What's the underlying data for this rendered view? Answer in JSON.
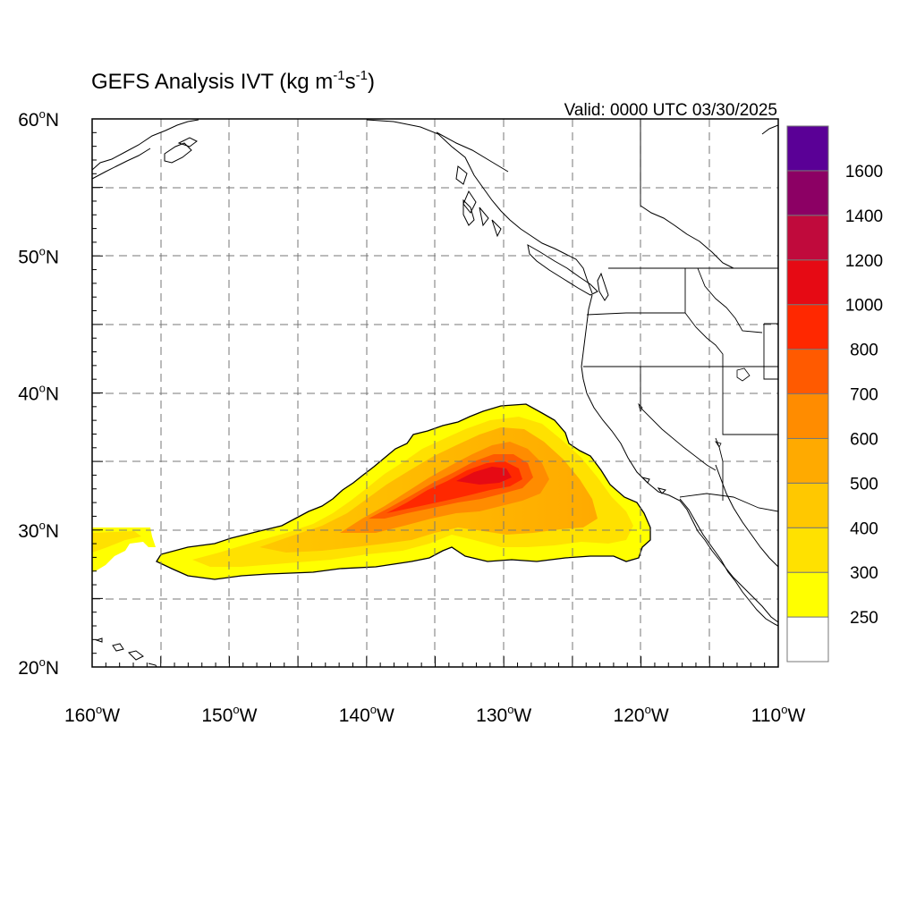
{
  "title": {
    "main": "GEFS Analysis IVT (kg m",
    "sup1": "-1",
    "mid": "s",
    "sup2": "-1",
    "close": ")"
  },
  "valid": "Valid: 0000 UTC 03/30/2025",
  "map": {
    "lon_range": [
      -160,
      -110
    ],
    "lat_range": [
      20,
      60
    ],
    "grid_lines": "dashed",
    "grid_spacing_deg": 5
  },
  "lat_labels": [
    {
      "lat": 60,
      "deg": "60",
      "dir": "N"
    },
    {
      "lat": 50,
      "deg": "50",
      "dir": "N"
    },
    {
      "lat": 40,
      "deg": "40",
      "dir": "N"
    },
    {
      "lat": 30,
      "deg": "30",
      "dir": "N"
    },
    {
      "lat": 20,
      "deg": "20",
      "dir": "N"
    }
  ],
  "lon_labels": [
    {
      "lon": -160,
      "deg": "160",
      "dir": "W"
    },
    {
      "lon": -150,
      "deg": "150",
      "dir": "W"
    },
    {
      "lon": -140,
      "deg": "140",
      "dir": "W"
    },
    {
      "lon": -130,
      "deg": "130",
      "dir": "W"
    },
    {
      "lon": -120,
      "deg": "120",
      "dir": "W"
    },
    {
      "lon": -110,
      "deg": "110",
      "dir": "W"
    }
  ],
  "colorbar": {
    "placement": "right",
    "levels": [
      "250",
      "300",
      "400",
      "500",
      "600",
      "700",
      "800",
      "1000",
      "1200",
      "1400",
      "1600"
    ],
    "colors": [
      "#ffffff",
      "#ffff00",
      "#ffe100",
      "#ffc800",
      "#ffaa00",
      "#ff8c00",
      "#ff5a00",
      "#ff2800",
      "#e60a14",
      "#c00a3c",
      "#8c0064",
      "#5a0096"
    ]
  },
  "ivt_band": {
    "outline_color": "#000000",
    "min_threshold": 250,
    "core_max_range": "1000-1200"
  }
}
